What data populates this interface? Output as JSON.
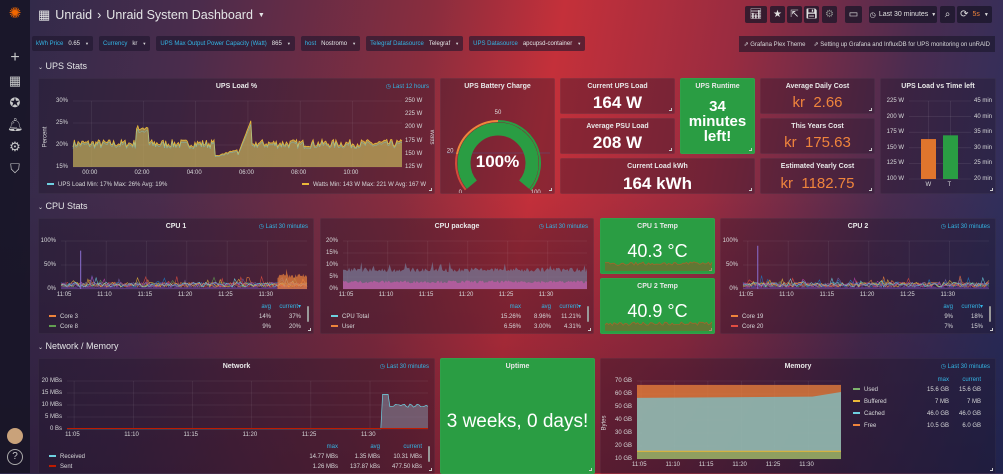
{
  "breadcrumb": {
    "folder": "Unraid",
    "separator": "›",
    "dashboard": "Unraid System Dashboard"
  },
  "toolbar": {
    "time_range": "Last 30 minutes",
    "refresh": "5s"
  },
  "variables": [
    {
      "label": "kWh Price",
      "value": "0.65"
    },
    {
      "label": "Currency",
      "value": "kr"
    },
    {
      "label": "UPS Max Output Power Capacity (Watt)",
      "value": "865"
    },
    {
      "label": "host",
      "value": "Nostromo"
    },
    {
      "label": "Telegraf Datasource",
      "value": "Telegraf"
    },
    {
      "label": "UPS Datasource",
      "value": "apcupsd-container"
    }
  ],
  "links": [
    "Grafana Plex Theme",
    "Setting up Grafana and InfluxDB for UPS monitoring on unRAID"
  ],
  "rows": {
    "ups": "UPS Stats",
    "cpu": "CPU Stats",
    "net": "Network / Memory"
  },
  "colors": {
    "green": "#2a9d43",
    "orange": "#ef843c",
    "blue": "#33b5e5"
  },
  "ups_load": {
    "title": "UPS Load %",
    "time": "Last 12 hours",
    "ylabel": "Percent",
    "y2label": "Watts",
    "yticks": [
      "15%",
      "20%",
      "25%",
      "30%"
    ],
    "y2ticks": [
      "125 W",
      "150 W",
      "175 W",
      "200 W",
      "225 W",
      "250 W"
    ],
    "xticks": [
      "00:00",
      "02:00",
      "04:00",
      "06:00",
      "08:00",
      "10:00"
    ],
    "legend_left": {
      "name": "UPS Load",
      "stats": "Min: 17%  Max: 26%  Avg: 19%"
    },
    "legend_right": {
      "name": "Watts",
      "stats": "Min: 143 W  Max: 221 W  Avg: 167 W"
    }
  },
  "battery": {
    "title": "UPS Battery Charge",
    "value": "100%",
    "percent": 100,
    "thresholds": [
      "0",
      "20",
      "50",
      "100"
    ]
  },
  "stats": {
    "current_load": {
      "title": "Current UPS Load",
      "value": "164 W"
    },
    "avg_psu": {
      "title": "Average PSU Load",
      "value": "208 W"
    },
    "kwh": {
      "title": "Current Load kWh",
      "value": "164 kWh"
    },
    "runtime": {
      "title": "UPS Runtime",
      "value": "34 minutes left!"
    },
    "daily": {
      "title": "Average Daily Cost",
      "prefix": "kr",
      "value": "2.66"
    },
    "year": {
      "title": "This Years Cost",
      "prefix": "kr",
      "value": "175.63"
    },
    "yearly": {
      "title": "Estimated Yearly Cost",
      "prefix": "kr",
      "value": "1182.75"
    }
  },
  "load_vs_time": {
    "title": "UPS Load vs Time left",
    "yticks": [
      "100 W",
      "125 W",
      "150 W",
      "175 W",
      "200 W",
      "225 W"
    ],
    "y2ticks": [
      "20 min",
      "25 min",
      "30 min",
      "35 min",
      "40 min",
      "45 min"
    ],
    "bars": [
      {
        "label": "W",
        "value": 164,
        "unit": "W",
        "color": "#e0752d"
      },
      {
        "label": "T",
        "value": 34,
        "unit": "min",
        "color": "#2a9d43"
      }
    ]
  },
  "cpu1": {
    "title": "CPU 1",
    "time": "Last 30 minutes",
    "yticks": [
      "0%",
      "50%",
      "100%"
    ],
    "xticks": [
      "11:05",
      "11:10",
      "11:15",
      "11:20",
      "11:25",
      "11:30"
    ],
    "headers": [
      "avg",
      "current▾"
    ],
    "rows": [
      {
        "name": "Core 3",
        "color": "#ef843c",
        "vals": [
          "14%",
          "37%"
        ]
      },
      {
        "name": "Core 8",
        "color": "#629e51",
        "vals": [
          "9%",
          "20%"
        ]
      }
    ]
  },
  "cpu_package": {
    "title": "CPU package",
    "time": "Last 30 minutes",
    "yticks": [
      "0%",
      "5%",
      "10%",
      "15%",
      "20%"
    ],
    "xticks": [
      "11:05",
      "11:10",
      "11:15",
      "11:20",
      "11:25",
      "11:30"
    ],
    "headers": [
      "max",
      "avg",
      "current▾"
    ],
    "rows": [
      {
        "name": "CPU Total",
        "color": "#6ed0e0",
        "vals": [
          "15.26%",
          "8.96%",
          "11.21%"
        ]
      },
      {
        "name": "User",
        "color": "#ef843c",
        "vals": [
          "6.56%",
          "3.00%",
          "4.31%"
        ]
      }
    ]
  },
  "cpu1_temp": {
    "title": "CPU 1 Temp",
    "value": "40.3 °C"
  },
  "cpu2_temp": {
    "title": "CPU 2 Temp",
    "value": "40.9 °C"
  },
  "cpu2": {
    "title": "CPU 2",
    "time": "Last 30 minutes",
    "yticks": [
      "0%",
      "50%",
      "100%"
    ],
    "xticks": [
      "11:05",
      "11:10",
      "11:15",
      "11:20",
      "11:25",
      "11:30"
    ],
    "headers": [
      "avg",
      "current▾"
    ],
    "rows": [
      {
        "name": "Core 19",
        "color": "#ef843c",
        "vals": [
          "9%",
          "18%"
        ]
      },
      {
        "name": "Core 20",
        "color": "#e24d42",
        "vals": [
          "7%",
          "15%"
        ]
      }
    ]
  },
  "network": {
    "title": "Network",
    "time": "Last 30 minutes",
    "yticks": [
      "0 Bs",
      "5 MBs",
      "10 MBs",
      "15 MBs",
      "20 MBs"
    ],
    "xticks": [
      "11:05",
      "11:10",
      "11:15",
      "11:20",
      "11:25",
      "11:30"
    ],
    "headers": [
      "max",
      "avg",
      "current"
    ],
    "rows": [
      {
        "name": "Received",
        "color": "#6ed0e0",
        "vals": [
          "14.77 MBs",
          "1.35 MBs",
          "10.31 MBs"
        ]
      },
      {
        "name": "Sent",
        "color": "#bf1b00",
        "vals": [
          "1.26 MBs",
          "137.87 kBs",
          "477.50 kBs"
        ]
      }
    ]
  },
  "uptime": {
    "title": "Uptime",
    "value": "3 weeks, 0 days!"
  },
  "memory": {
    "title": "Memory",
    "time": "Last 30 minutes",
    "ylabel": "Bytes",
    "yticks": [
      "10 GB",
      "20 GB",
      "30 GB",
      "40 GB",
      "50 GB",
      "60 GB",
      "70 GB"
    ],
    "xticks": [
      "11:05",
      "11:10",
      "11:15",
      "11:20",
      "11:25",
      "11:30"
    ],
    "headers": [
      "max",
      "current"
    ],
    "rows": [
      {
        "name": "Used",
        "color": "#7eb26d",
        "vals": [
          "15.6 GB",
          "15.6 GB"
        ]
      },
      {
        "name": "Buffered",
        "color": "#eab839",
        "vals": [
          "7 MB",
          "7 MB"
        ]
      },
      {
        "name": "Cached",
        "color": "#6ed0e0",
        "vals": [
          "46.0 GB",
          "46.0 GB"
        ]
      },
      {
        "name": "Free",
        "color": "#ef843c",
        "vals": [
          "10.5 GB",
          "6.0 GB"
        ]
      }
    ]
  }
}
